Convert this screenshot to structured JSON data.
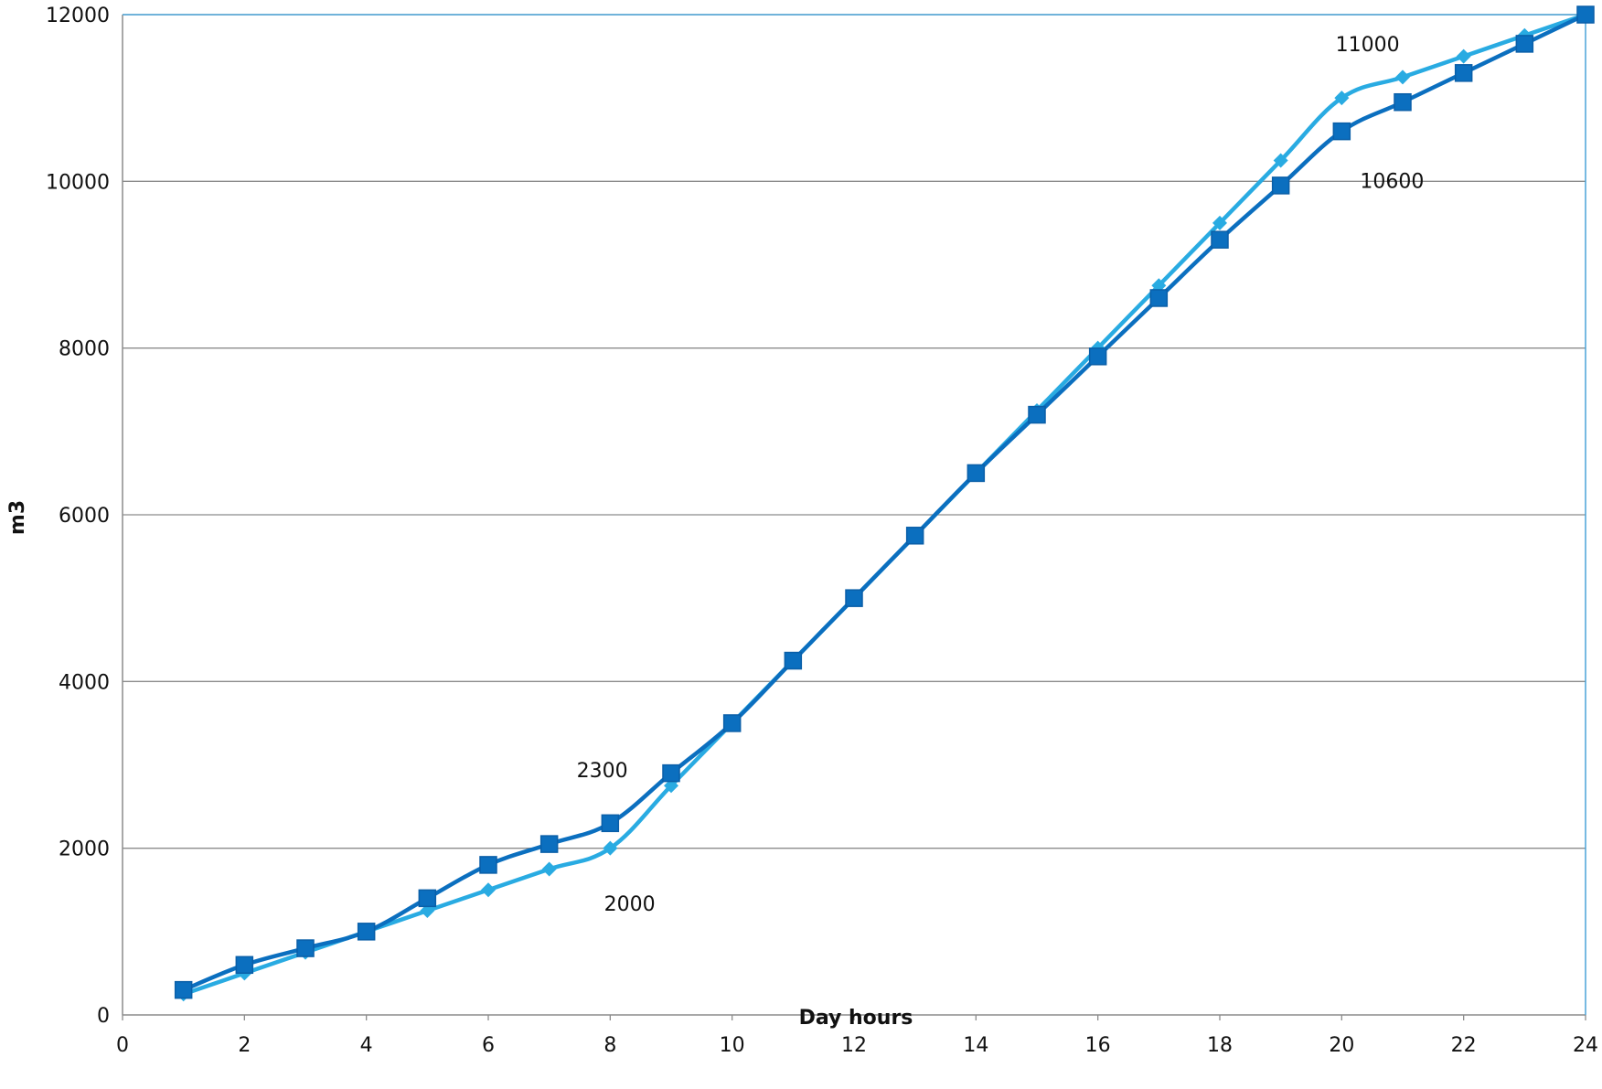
{
  "chart_data": {
    "type": "line",
    "xlabel": "Day hours",
    "ylabel": "m3",
    "xlim": [
      0,
      24
    ],
    "ylim": [
      0,
      12000
    ],
    "x_ticks": [
      "0",
      "2",
      "4",
      "6",
      "8",
      "10",
      "12",
      "14",
      "16",
      "18",
      "20",
      "22",
      "24"
    ],
    "y_ticks": [
      "0",
      "2000",
      "4000",
      "6000",
      "8000",
      "10000",
      "12000"
    ],
    "grid": "horizontal",
    "legend": "none",
    "series": [
      {
        "marker": "diamond",
        "color": "#29abe2",
        "x": [
          1,
          2,
          3,
          4,
          5,
          6,
          7,
          8,
          9,
          10,
          11,
          12,
          13,
          14,
          15,
          16,
          17,
          18,
          19,
          20,
          21,
          22,
          23,
          24
        ],
        "values": [
          250,
          500,
          750,
          1000,
          1250,
          1500,
          1750,
          2000,
          2750,
          3500,
          4250,
          5000,
          5750,
          6500,
          7250,
          8000,
          8750,
          9500,
          10250,
          11000,
          11250,
          11500,
          11750,
          12000
        ]
      },
      {
        "marker": "square",
        "color": "#0b6fbf",
        "x": [
          1,
          2,
          3,
          4,
          5,
          6,
          7,
          8,
          9,
          10,
          11,
          12,
          13,
          14,
          15,
          16,
          17,
          18,
          19,
          20,
          21,
          22,
          23,
          24
        ],
        "values": [
          300,
          600,
          800,
          1000,
          1400,
          1800,
          2050,
          2300,
          2900,
          3500,
          4250,
          5000,
          5750,
          6500,
          7200,
          7900,
          8600,
          9300,
          9950,
          10600,
          10950,
          11300,
          11650,
          12000
        ]
      }
    ],
    "annotations": [
      {
        "text": "11000",
        "x": 19.9,
        "y": 11560
      },
      {
        "text": "10600",
        "x": 20.3,
        "y": 9920
      },
      {
        "text": "2300",
        "x": 7.45,
        "y": 2850
      },
      {
        "text": "2000",
        "x": 7.9,
        "y": 1250
      }
    ]
  }
}
